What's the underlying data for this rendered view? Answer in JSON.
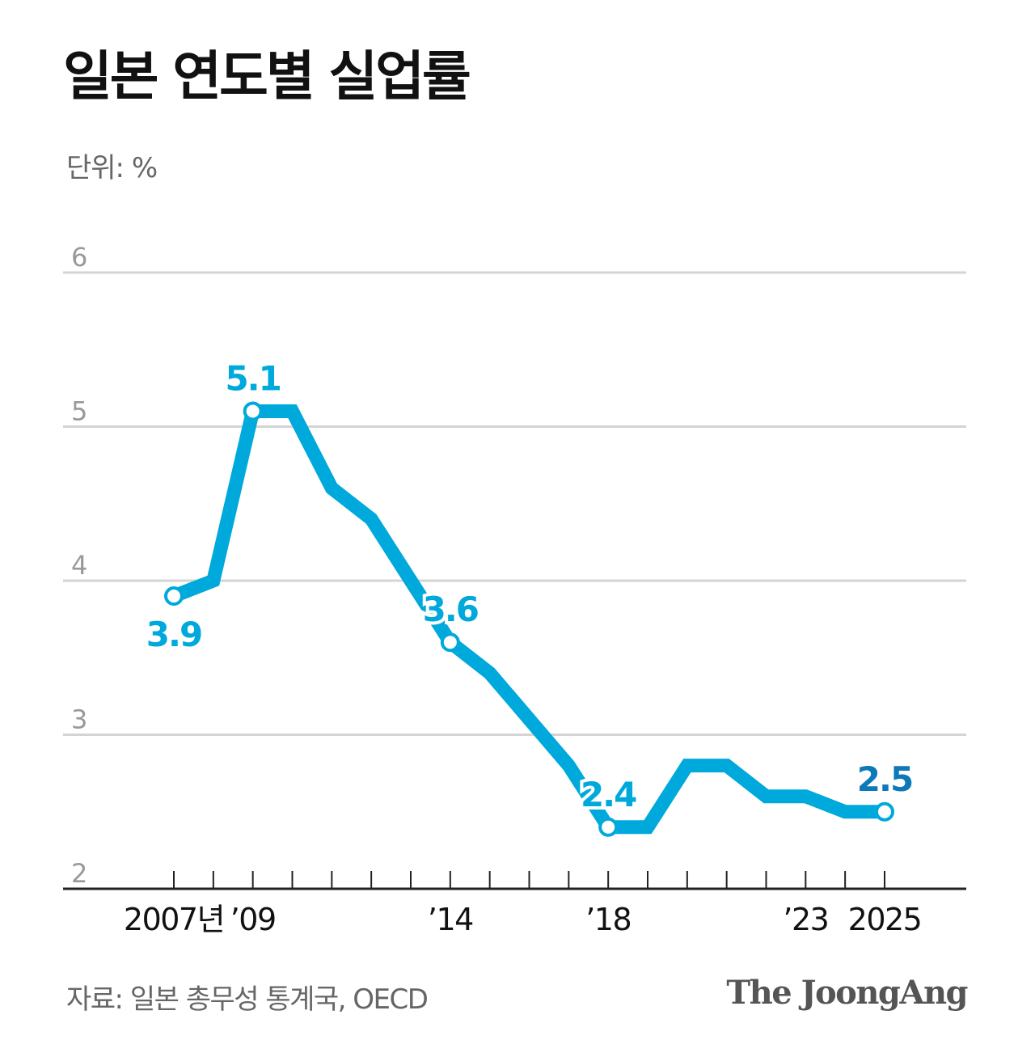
{
  "title": "일본 연도별 실업률",
  "unit_label": "단위: %",
  "source": "자료: 일본 총무성 통계국, OECD",
  "brand": "The JoongAng",
  "colors": {
    "line": "#00a9db",
    "highlight": "#0d79b8",
    "grid": "#d4d4d4",
    "axis": "#222222",
    "tick_label": "#999999"
  },
  "chart_data": {
    "type": "line",
    "title": "일본 연도별 실업률",
    "ylabel": "단위: %",
    "ylim": [
      2,
      6
    ],
    "yticks": [
      "2",
      "3",
      "4",
      "5",
      "6"
    ],
    "x": [
      2007,
      2008,
      2009,
      2010,
      2011,
      2012,
      2013,
      2014,
      2015,
      2016,
      2017,
      2018,
      2019,
      2020,
      2021,
      2022,
      2023,
      2024,
      2025
    ],
    "values": [
      3.9,
      4.0,
      5.1,
      5.1,
      4.6,
      4.4,
      4.0,
      3.6,
      3.4,
      3.1,
      2.8,
      2.4,
      2.4,
      2.8,
      2.8,
      2.6,
      2.6,
      2.5,
      2.5
    ],
    "x_tick_labels": [
      {
        "year": 2007,
        "label": "2007년"
      },
      {
        "year": 2009,
        "label": "’09"
      },
      {
        "year": 2014,
        "label": "’14"
      },
      {
        "year": 2018,
        "label": "’18"
      },
      {
        "year": 2023,
        "label": "’23"
      },
      {
        "year": 2025,
        "label": "2025"
      }
    ],
    "annotations": [
      {
        "year": 2007,
        "label": "3.9",
        "position": "below"
      },
      {
        "year": 2009,
        "label": "5.1",
        "position": "above"
      },
      {
        "year": 2014,
        "label": "3.6",
        "position": "above"
      },
      {
        "year": 2018,
        "label": "2.4",
        "position": "above"
      },
      {
        "year": 2025,
        "label": "2.5",
        "position": "above",
        "highlight": true
      }
    ],
    "grid": true
  }
}
